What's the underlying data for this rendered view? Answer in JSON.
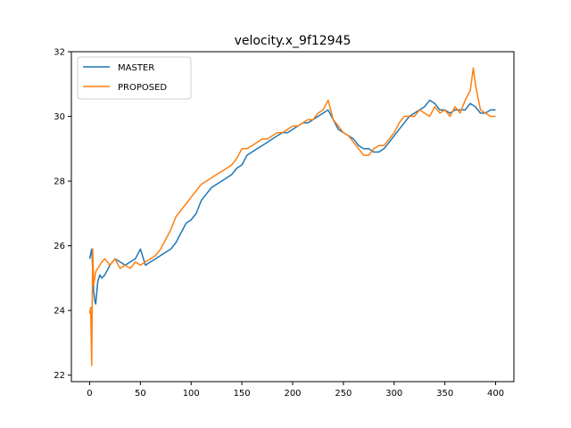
{
  "chart_data": {
    "type": "line",
    "title": "velocity.x_9f12945",
    "xlabel": "",
    "ylabel": "",
    "xlim": [
      -18,
      418
    ],
    "ylim": [
      21.8,
      32
    ],
    "xticks": [
      0,
      50,
      100,
      150,
      200,
      250,
      300,
      350,
      400
    ],
    "yticks": [
      22,
      24,
      26,
      28,
      30,
      32
    ],
    "grid": false,
    "legend_position": "upper left",
    "series": [
      {
        "name": "MASTER",
        "color": "#1f77b4",
        "x": [
          0,
          2,
          4,
          5,
          6,
          8,
          10,
          12,
          15,
          20,
          25,
          30,
          35,
          40,
          45,
          50,
          55,
          60,
          65,
          70,
          75,
          80,
          85,
          90,
          95,
          100,
          105,
          110,
          115,
          120,
          125,
          130,
          135,
          140,
          145,
          150,
          155,
          160,
          165,
          170,
          175,
          180,
          185,
          190,
          195,
          200,
          205,
          210,
          215,
          220,
          225,
          230,
          235,
          240,
          245,
          250,
          255,
          260,
          265,
          270,
          275,
          280,
          285,
          290,
          295,
          300,
          305,
          310,
          315,
          320,
          325,
          330,
          335,
          340,
          345,
          350,
          355,
          360,
          365,
          370,
          375,
          380,
          385,
          390,
          395,
          400
        ],
        "y": [
          25.6,
          25.9,
          24.6,
          24.3,
          24.2,
          24.9,
          25.1,
          25.0,
          25.1,
          25.4,
          25.6,
          25.5,
          25.4,
          25.5,
          25.6,
          25.9,
          25.4,
          25.5,
          25.6,
          25.7,
          25.8,
          25.9,
          26.1,
          26.4,
          26.7,
          26.8,
          27.0,
          27.4,
          27.6,
          27.8,
          27.9,
          28.0,
          28.1,
          28.2,
          28.4,
          28.5,
          28.8,
          28.9,
          29.0,
          29.1,
          29.2,
          29.3,
          29.4,
          29.5,
          29.5,
          29.6,
          29.7,
          29.8,
          29.8,
          29.9,
          30.0,
          30.1,
          30.2,
          29.9,
          29.6,
          29.5,
          29.4,
          29.3,
          29.1,
          29.0,
          29.0,
          28.9,
          28.9,
          29.0,
          29.2,
          29.4,
          29.6,
          29.8,
          30.0,
          30.1,
          30.2,
          30.3,
          30.5,
          30.4,
          30.2,
          30.2,
          30.1,
          30.2,
          30.2,
          30.2,
          30.4,
          30.3,
          30.1,
          30.1,
          30.2,
          30.2
        ]
      },
      {
        "name": "PROPOSED",
        "color": "#ff7f0e",
        "x": [
          0,
          1,
          2,
          3,
          4,
          5,
          6,
          8,
          10,
          12,
          15,
          20,
          25,
          30,
          35,
          40,
          45,
          50,
          55,
          60,
          65,
          70,
          75,
          80,
          85,
          90,
          95,
          100,
          105,
          110,
          115,
          120,
          125,
          130,
          135,
          140,
          145,
          150,
          155,
          160,
          165,
          170,
          175,
          180,
          185,
          190,
          195,
          200,
          205,
          210,
          215,
          220,
          225,
          230,
          235,
          240,
          245,
          250,
          255,
          260,
          265,
          270,
          275,
          280,
          285,
          290,
          295,
          300,
          305,
          310,
          315,
          320,
          325,
          330,
          335,
          340,
          345,
          350,
          355,
          360,
          365,
          370,
          375,
          378,
          380,
          385,
          390,
          395,
          400
        ],
        "y": [
          23.9,
          24.1,
          22.3,
          25.9,
          24.8,
          25.0,
          25.2,
          25.3,
          25.4,
          25.5,
          25.6,
          25.4,
          25.6,
          25.3,
          25.4,
          25.3,
          25.5,
          25.4,
          25.5,
          25.6,
          25.7,
          25.9,
          26.2,
          26.5,
          26.9,
          27.1,
          27.3,
          27.5,
          27.7,
          27.9,
          28.0,
          28.1,
          28.2,
          28.3,
          28.4,
          28.5,
          28.7,
          29.0,
          29.0,
          29.1,
          29.2,
          29.3,
          29.3,
          29.4,
          29.5,
          29.5,
          29.6,
          29.7,
          29.7,
          29.8,
          29.9,
          29.9,
          30.1,
          30.2,
          30.5,
          29.9,
          29.7,
          29.5,
          29.4,
          29.2,
          29.0,
          28.8,
          28.8,
          29.0,
          29.1,
          29.1,
          29.3,
          29.5,
          29.8,
          30.0,
          30.0,
          30.0,
          30.2,
          30.1,
          30.0,
          30.3,
          30.1,
          30.2,
          30.0,
          30.3,
          30.1,
          30.5,
          30.8,
          31.5,
          31.0,
          30.2,
          30.1,
          30.0,
          30.0
        ]
      }
    ]
  }
}
